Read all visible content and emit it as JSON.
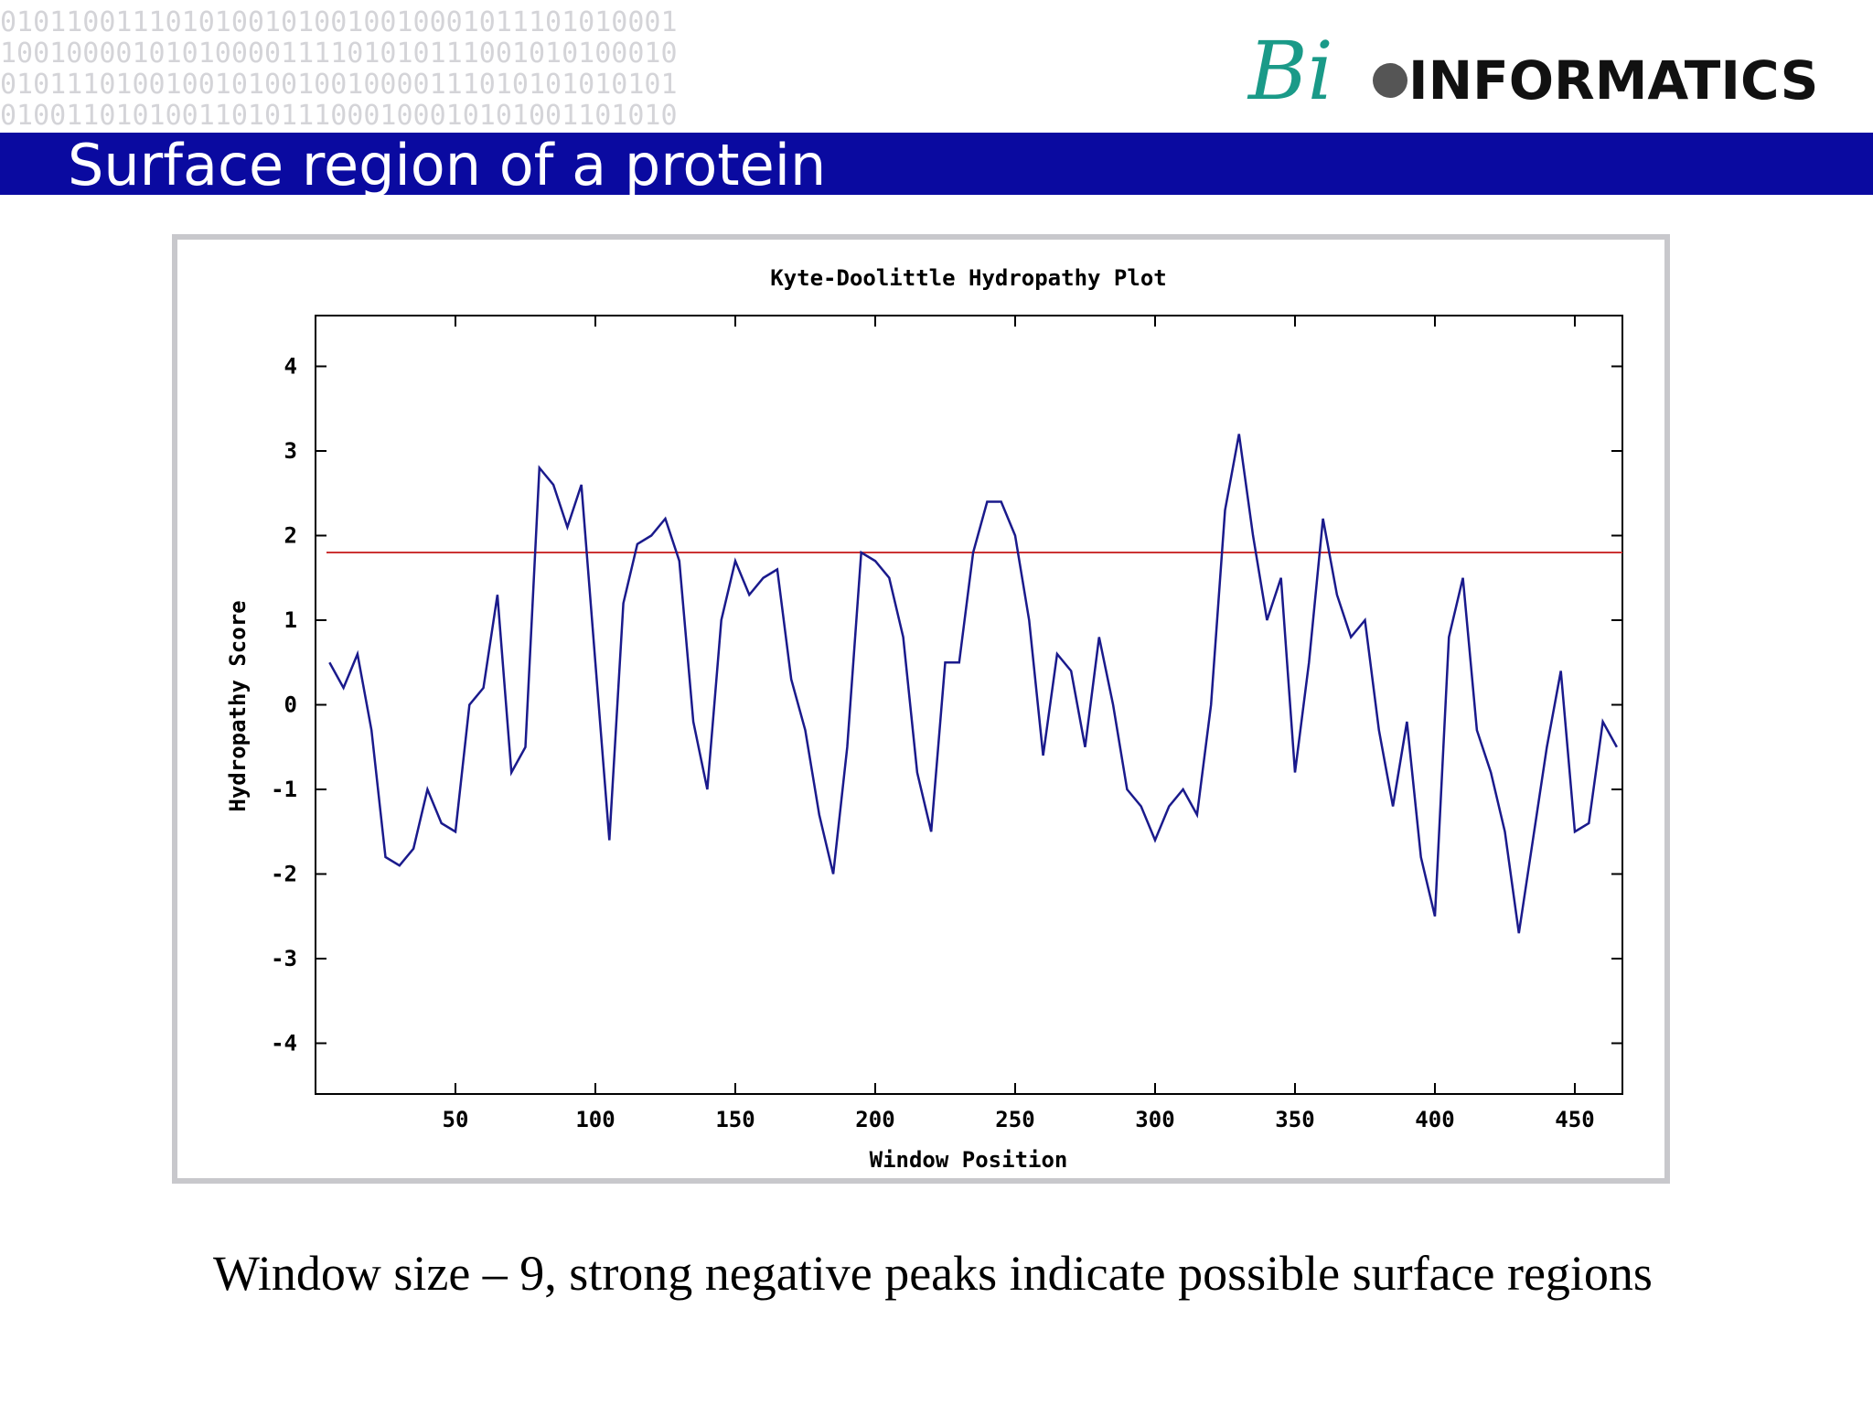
{
  "header": {
    "binary_lines": [
      "01011001110101001010010010001011101010001",
      "10010000101010000111101010111001010100010",
      "01011101001001010010010000111010101010101",
      "01001101010011010111000100010101001101010"
    ],
    "logo": {
      "prefix": "Bi",
      "text": "INFORMATICS"
    },
    "title": "Surface region of a protein"
  },
  "chart_data": {
    "type": "line",
    "title": "Kyte-Doolittle Hydropathy Plot",
    "x_label": "Window Position",
    "y_label": "Hydropathy Score",
    "x": [
      5,
      10,
      15,
      20,
      25,
      30,
      35,
      40,
      45,
      50,
      55,
      60,
      65,
      70,
      75,
      80,
      85,
      90,
      95,
      100,
      105,
      110,
      115,
      120,
      125,
      130,
      135,
      140,
      145,
      150,
      155,
      160,
      165,
      170,
      175,
      180,
      185,
      190,
      195,
      200,
      205,
      210,
      215,
      220,
      225,
      230,
      235,
      240,
      245,
      250,
      255,
      260,
      265,
      270,
      275,
      280,
      285,
      290,
      295,
      300,
      305,
      310,
      315,
      320,
      325,
      330,
      335,
      340,
      345,
      350,
      355,
      360,
      365,
      370,
      375,
      380,
      385,
      390,
      395,
      400,
      405,
      410,
      415,
      420,
      425,
      430,
      435,
      440,
      445,
      450,
      455,
      460,
      465
    ],
    "series": [
      {
        "name": "Hydropathy",
        "color": "#1a1a8c",
        "values": [
          0.5,
          0.2,
          0.6,
          -0.3,
          -1.8,
          -1.9,
          -1.7,
          -1.0,
          -1.4,
          -1.5,
          0.0,
          0.2,
          1.3,
          -0.8,
          -0.5,
          2.8,
          2.6,
          2.1,
          2.6,
          0.5,
          -1.6,
          1.2,
          1.9,
          2.0,
          2.2,
          1.7,
          -0.2,
          -1.0,
          1.0,
          1.7,
          1.3,
          1.5,
          1.6,
          0.3,
          -0.3,
          -1.3,
          -2.0,
          -0.5,
          1.8,
          1.7,
          1.5,
          0.8,
          -0.8,
          -1.5,
          0.5,
          0.5,
          1.8,
          2.4,
          2.4,
          2.0,
          1.0,
          -0.6,
          0.6,
          0.4,
          -0.5,
          0.8,
          0.0,
          -1.0,
          -1.2,
          -1.6,
          -1.2,
          -1.0,
          -1.3,
          0.0,
          2.3,
          3.2,
          2.0,
          1.0,
          1.5,
          -0.8,
          0.5,
          2.2,
          1.3,
          0.8,
          1.0,
          -0.3,
          -1.2,
          -0.2,
          -1.8,
          -2.5,
          0.8,
          1.5,
          -0.3,
          -0.8,
          -1.5,
          -2.7,
          -1.6,
          -0.5,
          0.4,
          -1.5,
          -1.4,
          -0.2,
          -0.5
        ]
      }
    ],
    "threshold": 1.8,
    "threshold_color": "#cc3333",
    "xlim": [
      0,
      467
    ],
    "xticks": [
      50,
      100,
      150,
      200,
      250,
      300,
      350,
      400,
      450
    ],
    "ylim": [
      -4.6,
      4.6
    ],
    "yticks": [
      -4,
      -3,
      -2,
      -1,
      0,
      1,
      2,
      3,
      4
    ]
  },
  "caption": "Window size – 9, strong negative peaks indicate possible surface regions"
}
